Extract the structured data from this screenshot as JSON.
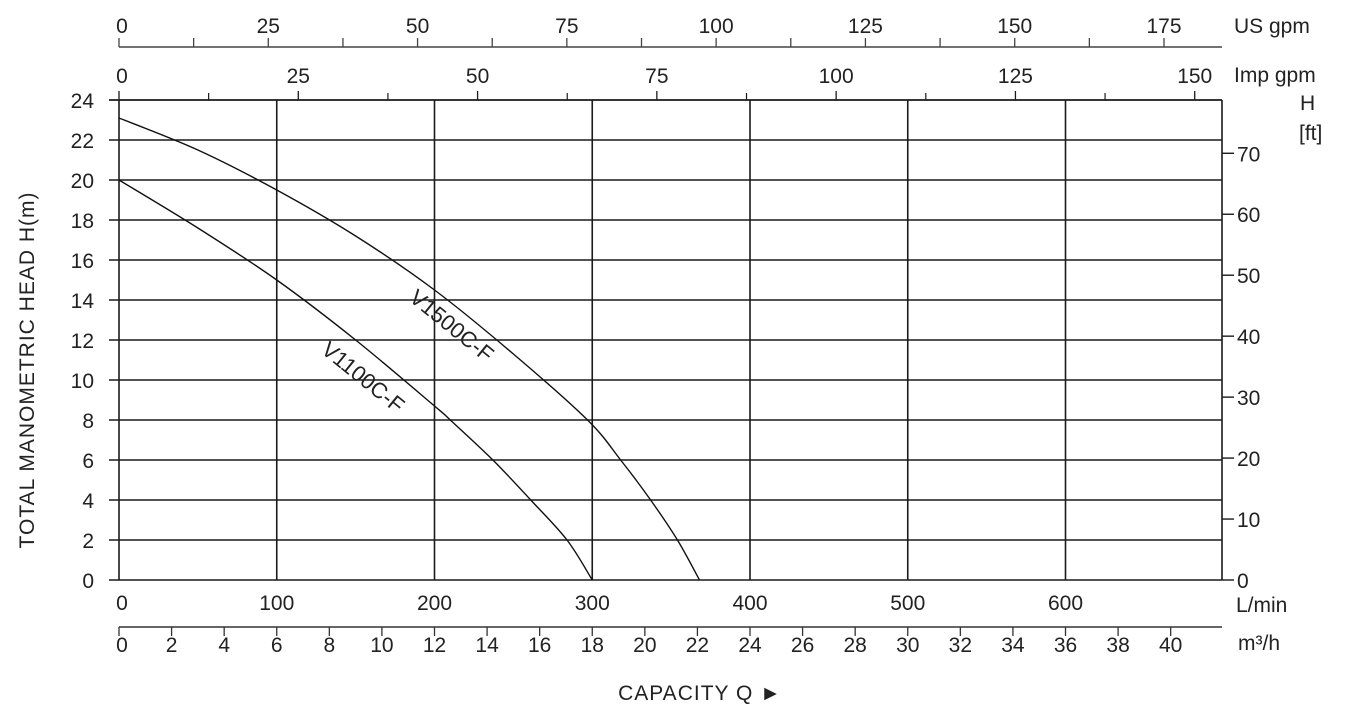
{
  "chart_data": {
    "type": "line",
    "title": "",
    "xlabel": "CAPACITY Q",
    "ylabel": "TOTAL MANOMETRIC HEAD H(m)",
    "xlim": [
      0,
      700
    ],
    "ylim": [
      0,
      24
    ],
    "grid": true,
    "x_unit": "L/min",
    "x_ticks": [
      0,
      100,
      200,
      300,
      400,
      500,
      600
    ],
    "y_ticks": [
      0,
      2,
      4,
      6,
      8,
      10,
      12,
      14,
      16,
      18,
      20,
      22,
      24
    ],
    "secondary_axes": {
      "us_gpm": {
        "unit": "US gpm",
        "ticks": [
          0,
          25,
          50,
          75,
          100,
          125,
          150,
          175
        ]
      },
      "imp_gpm": {
        "unit": "Imp gpm",
        "ticks": [
          0,
          25,
          50,
          75,
          100,
          125,
          150
        ]
      },
      "m3h": {
        "unit": "m³/h",
        "ticks": [
          0,
          2,
          4,
          6,
          8,
          10,
          12,
          14,
          16,
          18,
          20,
          22,
          24,
          26,
          28,
          30,
          32,
          34,
          36,
          38,
          40
        ]
      },
      "h_ft": {
        "unit": "H [ft]",
        "ticks": [
          0,
          10,
          20,
          30,
          40,
          50,
          60,
          70
        ]
      }
    },
    "series": [
      {
        "name": "V1500C-F",
        "x": [
          0,
          50,
          100,
          150,
          200,
          250,
          297,
          318,
          337,
          354,
          368
        ],
        "y": [
          23.1,
          21.5,
          19.5,
          17.2,
          14.5,
          11.3,
          8,
          6,
          4,
          2,
          0
        ]
      },
      {
        "name": "V1100C-F",
        "x": [
          0,
          50,
          100,
          150,
          200,
          210,
          237,
          261,
          284,
          300
        ],
        "y": [
          20,
          17.6,
          15.0,
          12.0,
          8.7,
          8,
          6,
          4,
          2,
          0
        ]
      }
    ],
    "legend": "inline curve labels"
  },
  "labels": {
    "y_axis_title": "TOTAL MANOMETRIC HEAD H(m)",
    "x_axis_title": "CAPACITY Q ►",
    "us_gpm_unit": "US gpm",
    "imp_gpm_unit": "Imp gpm",
    "lmin_unit": "L/min",
    "m3h_unit": "m³/h",
    "hft_unit_h": "H",
    "hft_unit_ft": "[ft]",
    "curve_1": "V1500C-F",
    "curve_2": "V1100C-F"
  }
}
